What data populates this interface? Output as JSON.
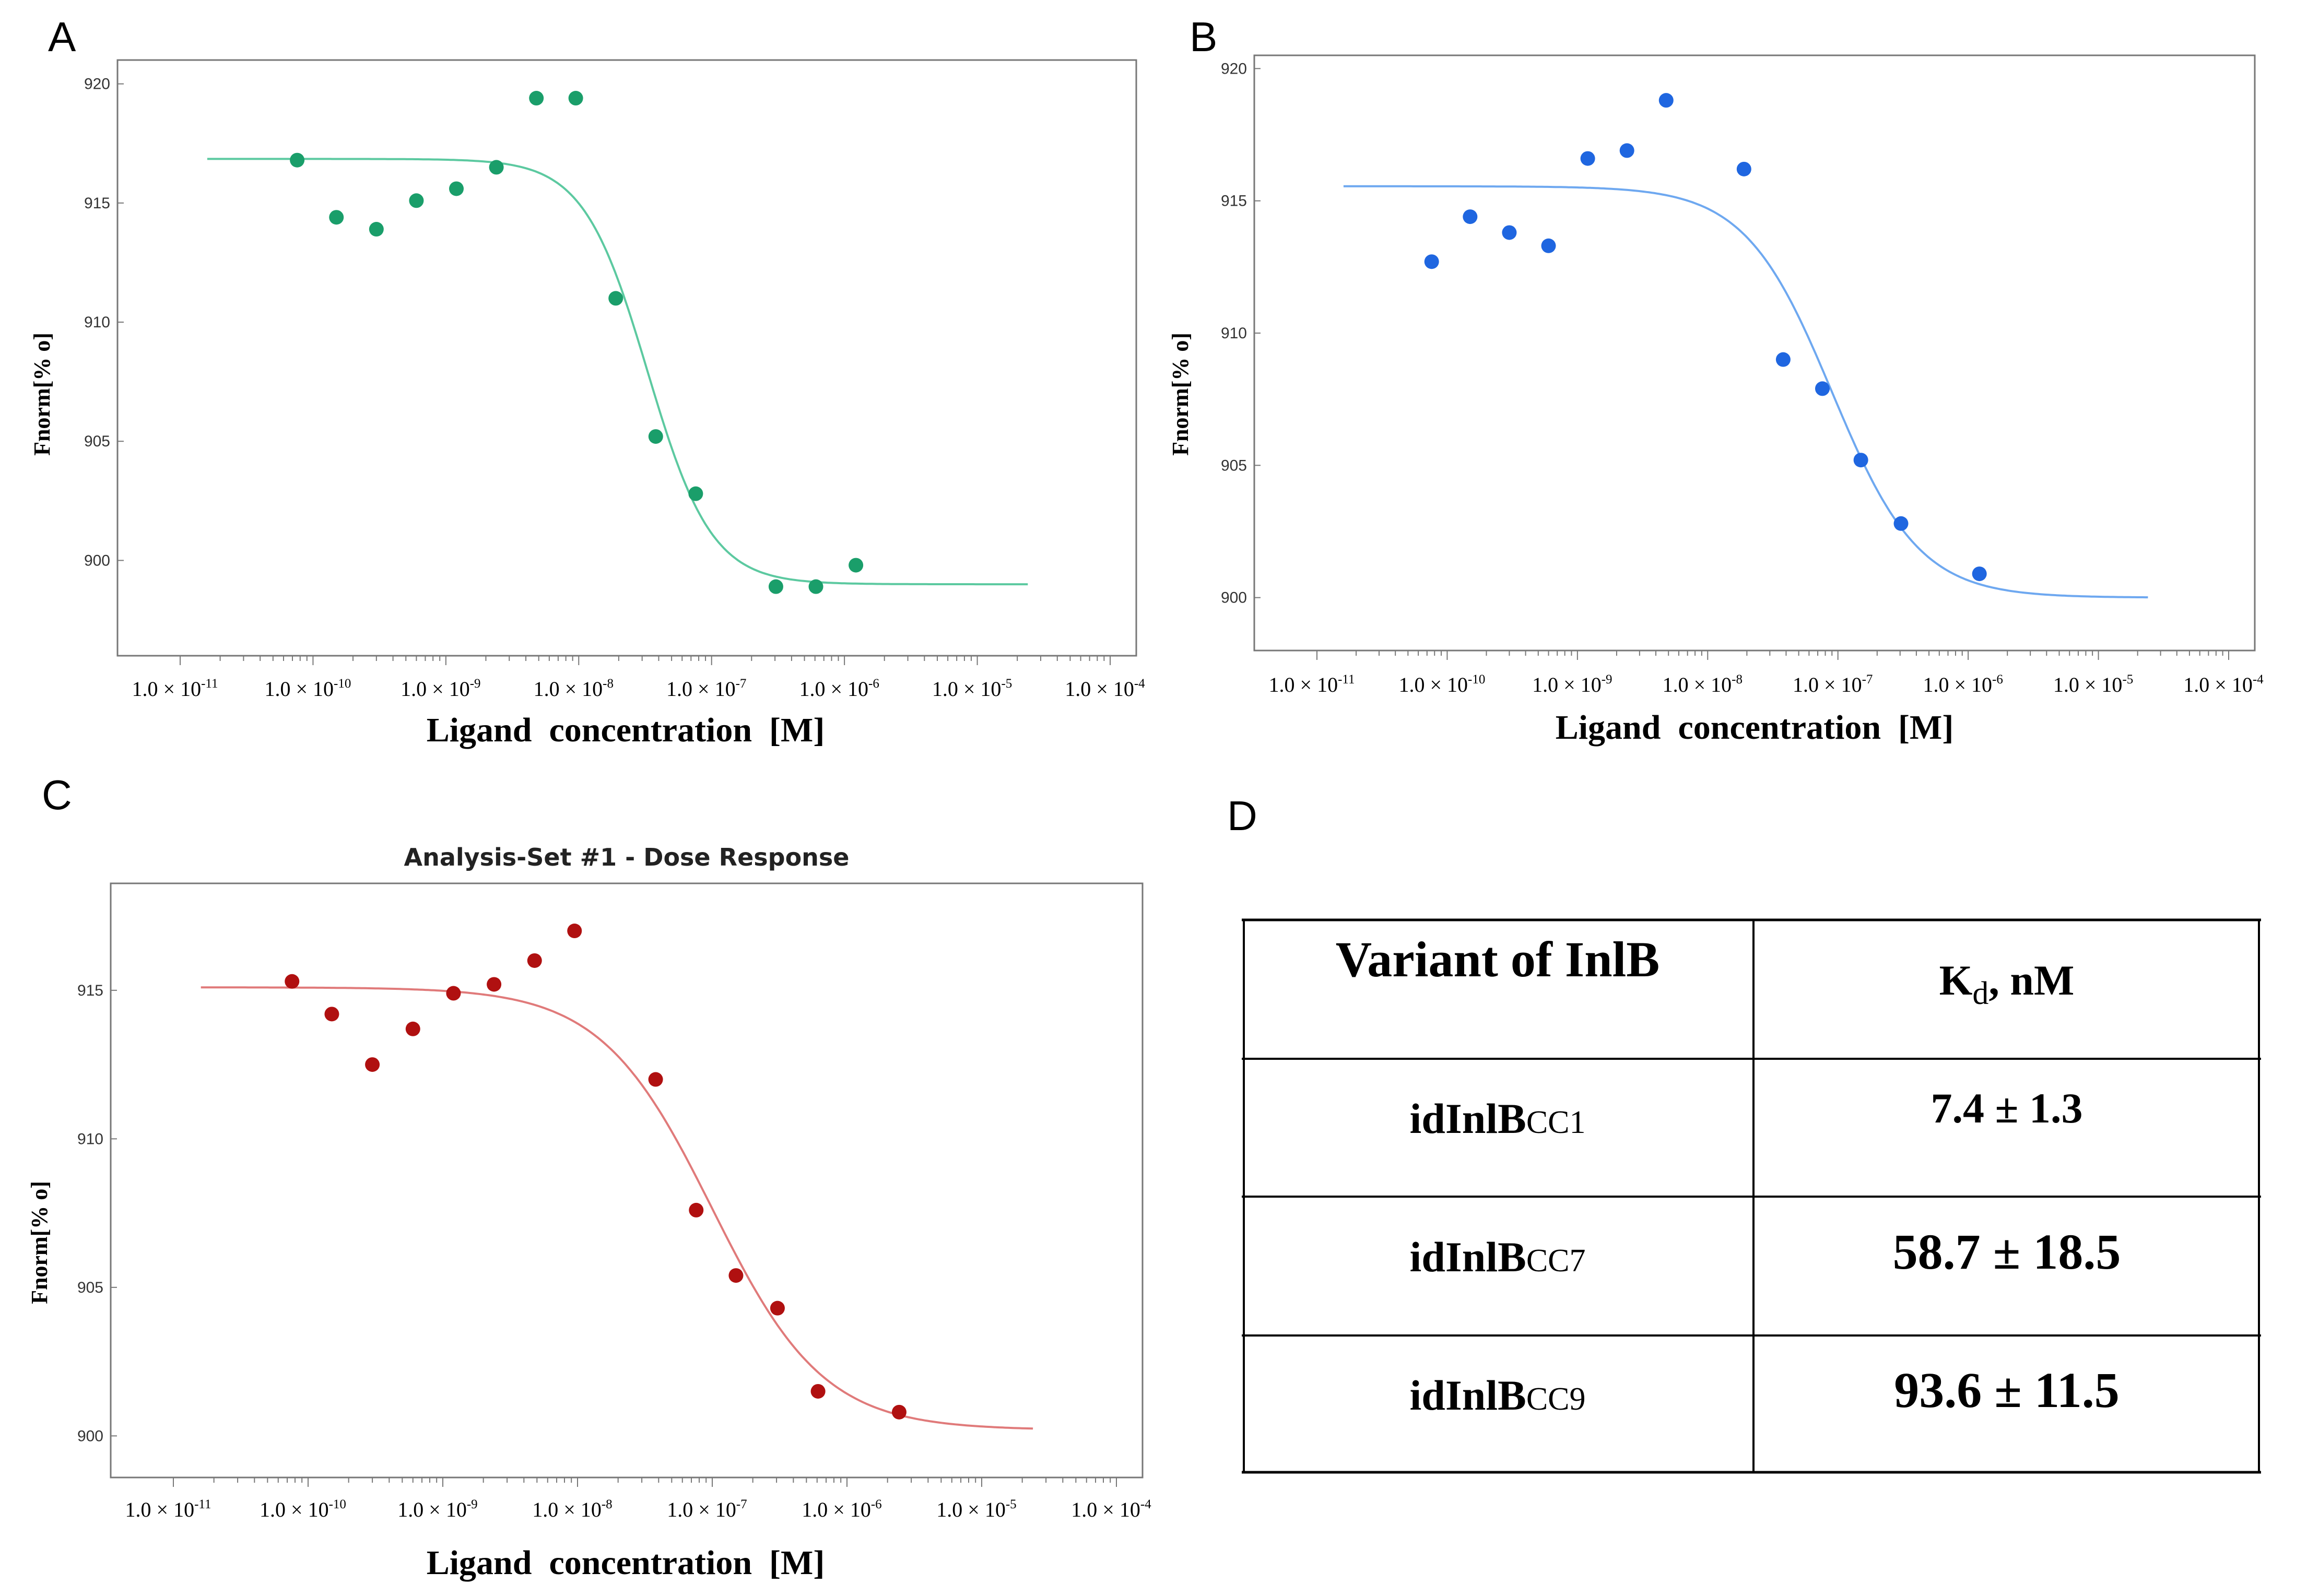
{
  "panels": {
    "A": {
      "letter": "A"
    },
    "B": {
      "letter": "B"
    },
    "C": {
      "letter": "C"
    },
    "D": {
      "letter": "D"
    }
  },
  "chart_data": [
    {
      "panel": "A",
      "type": "scatter",
      "title": "",
      "xlabel": "Ligand  concentration  [M]",
      "ylabel": "Fnorm[% o]",
      "x_scale": "log",
      "xlim": [
        1e-11,
        0.0001
      ],
      "ylim": [
        896,
        921
      ],
      "yticks": [
        900,
        905,
        910,
        915,
        920
      ],
      "xtick_labels": [
        {
          "base": "1.0 × 10",
          "exp": "-11",
          "value": 1e-11
        },
        {
          "base": "1.0 × 10",
          "exp": "-10",
          "value": 1e-10
        },
        {
          "base": "1.0 × 10",
          "exp": "-9",
          "value": 1e-09
        },
        {
          "base": "1.0 × 10",
          "exp": "-8",
          "value": 1e-08
        },
        {
          "base": "1.0 × 10",
          "exp": "-7",
          "value": 1e-07
        },
        {
          "base": "1.0 × 10",
          "exp": "-6",
          "value": 1e-06
        },
        {
          "base": "1.0 × 10",
          "exp": "-5",
          "value": 1e-05
        },
        {
          "base": "1.0 × 10",
          "exp": "-4",
          "value": 0.0001
        }
      ],
      "color": "#1a9e6a",
      "line_color": "#5cc9a0",
      "points": [
        {
          "x": 7.6e-11,
          "y": 916.8
        },
        {
          "x": 1.5e-10,
          "y": 914.4
        },
        {
          "x": 3e-10,
          "y": 913.9
        },
        {
          "x": 6e-10,
          "y": 915.1
        },
        {
          "x": 1.2e-09,
          "y": 915.6
        },
        {
          "x": 2.4e-09,
          "y": 916.5
        },
        {
          "x": 4.8e-09,
          "y": 919.4
        },
        {
          "x": 9.5e-09,
          "y": 919.4
        },
        {
          "x": 1.9e-08,
          "y": 911.0
        },
        {
          "x": 3.8e-08,
          "y": 905.2
        },
        {
          "x": 7.6e-08,
          "y": 902.8
        },
        {
          "x": 3.05e-07,
          "y": 898.9
        },
        {
          "x": 6.1e-07,
          "y": 898.9
        },
        {
          "x": 1.22e-06,
          "y": 899.8
        }
      ],
      "fit": {
        "top": 916.85,
        "bottom": 899.0,
        "ec50": 3.3e-08,
        "hill": 1.8,
        "xrange": [
          1.6e-11,
          2.4e-05
        ]
      }
    },
    {
      "panel": "B",
      "type": "scatter",
      "title": "",
      "xlabel": "Ligand  concentration  [M]",
      "ylabel": "Fnorm[% o]",
      "x_scale": "log",
      "xlim": [
        1e-11,
        0.0001
      ],
      "ylim": [
        898,
        920.5
      ],
      "yticks": [
        900,
        905,
        910,
        915,
        920
      ],
      "xtick_labels": [
        {
          "base": "1.0 × 10",
          "exp": "-11",
          "value": 1e-11
        },
        {
          "base": "1.0 × 10",
          "exp": "-10",
          "value": 1e-10
        },
        {
          "base": "1.0 × 10",
          "exp": "-9",
          "value": 1e-09
        },
        {
          "base": "1.0 × 10",
          "exp": "-8",
          "value": 1e-08
        },
        {
          "base": "1.0 × 10",
          "exp": "-7",
          "value": 1e-07
        },
        {
          "base": "1.0 × 10",
          "exp": "-6",
          "value": 1e-06
        },
        {
          "base": "1.0 × 10",
          "exp": "-5",
          "value": 1e-05
        },
        {
          "base": "1.0 × 10",
          "exp": "-4",
          "value": 0.0001
        }
      ],
      "color": "#1f66e0",
      "line_color": "#6ea8f0",
      "points": [
        {
          "x": 7.6e-11,
          "y": 912.7
        },
        {
          "x": 1.5e-10,
          "y": 914.4
        },
        {
          "x": 3e-10,
          "y": 913.8
        },
        {
          "x": 6e-10,
          "y": 913.3
        },
        {
          "x": 1.2e-09,
          "y": 916.6
        },
        {
          "x": 2.4e-09,
          "y": 916.9
        },
        {
          "x": 4.8e-09,
          "y": 918.8
        },
        {
          "x": 1.9e-08,
          "y": 916.2
        },
        {
          "x": 3.8e-08,
          "y": 909.0
        },
        {
          "x": 7.6e-08,
          "y": 907.9
        },
        {
          "x": 1.5e-07,
          "y": 905.2
        },
        {
          "x": 3.05e-07,
          "y": 902.8
        },
        {
          "x": 1.22e-06,
          "y": 900.9
        }
      ],
      "fit": {
        "top": 915.55,
        "bottom": 900.0,
        "ec50": 9e-08,
        "hill": 1.3,
        "xrange": [
          1.6e-11,
          2.4e-05
        ]
      }
    },
    {
      "panel": "C",
      "type": "scatter",
      "title": "Analysis-Set #1 - Dose Response",
      "xlabel": "Ligand  concentration  [M]",
      "ylabel": "Fnorm[% o]",
      "x_scale": "log",
      "xlim": [
        1e-11,
        0.0001
      ],
      "ylim": [
        898.6,
        918.6
      ],
      "yticks": [
        900,
        905,
        910,
        915
      ],
      "xtick_labels": [
        {
          "base": "1.0 × 10",
          "exp": "-11",
          "value": 1e-11
        },
        {
          "base": "1.0 × 10",
          "exp": "-10",
          "value": 1e-10
        },
        {
          "base": "1.0 × 10",
          "exp": "-9",
          "value": 1e-09
        },
        {
          "base": "1.0 × 10",
          "exp": "-8",
          "value": 1e-08
        },
        {
          "base": "1.0 × 10",
          "exp": "-7",
          "value": 1e-07
        },
        {
          "base": "1.0 × 10",
          "exp": "-6",
          "value": 1e-06
        },
        {
          "base": "1.0 × 10",
          "exp": "-5",
          "value": 1e-05
        },
        {
          "base": "1.0 × 10",
          "exp": "-4",
          "value": 0.0001
        }
      ],
      "color": "#b01010",
      "line_color": "#e07a7a",
      "points": [
        {
          "x": 7.6e-11,
          "y": 915.3
        },
        {
          "x": 1.5e-10,
          "y": 914.2
        },
        {
          "x": 3e-10,
          "y": 912.5
        },
        {
          "x": 6e-10,
          "y": 913.7
        },
        {
          "x": 1.2e-09,
          "y": 914.9
        },
        {
          "x": 2.4e-09,
          "y": 915.2
        },
        {
          "x": 4.8e-09,
          "y": 916.0
        },
        {
          "x": 9.5e-09,
          "y": 917.0
        },
        {
          "x": 3.8e-08,
          "y": 912.0
        },
        {
          "x": 7.6e-08,
          "y": 907.6
        },
        {
          "x": 1.5e-07,
          "y": 905.4
        },
        {
          "x": 3.05e-07,
          "y": 904.3
        },
        {
          "x": 6.1e-07,
          "y": 901.5
        },
        {
          "x": 2.44e-06,
          "y": 900.8
        }
      ],
      "fit": {
        "top": 915.1,
        "bottom": 900.2,
        "ec50": 1e-07,
        "hill": 1.05,
        "xrange": [
          1.6e-11,
          2.4e-05
        ]
      }
    },
    {
      "panel": "D",
      "type": "table",
      "columns": [
        "Variant of InlB",
        "Kd, nM"
      ],
      "kd_header": {
        "base": "K",
        "sub": "d",
        "rest": ", nM"
      },
      "rows": [
        {
          "variant": "idInlB",
          "variant_sub": "CC1",
          "kd": "7.4 ± 1.3"
        },
        {
          "variant": "idInlB",
          "variant_sub": "CC7",
          "kd": "58.7 ± 18.5"
        },
        {
          "variant": "idInlB",
          "variant_sub": "CC9",
          "kd": "93.6 ± 11.5"
        }
      ]
    }
  ]
}
